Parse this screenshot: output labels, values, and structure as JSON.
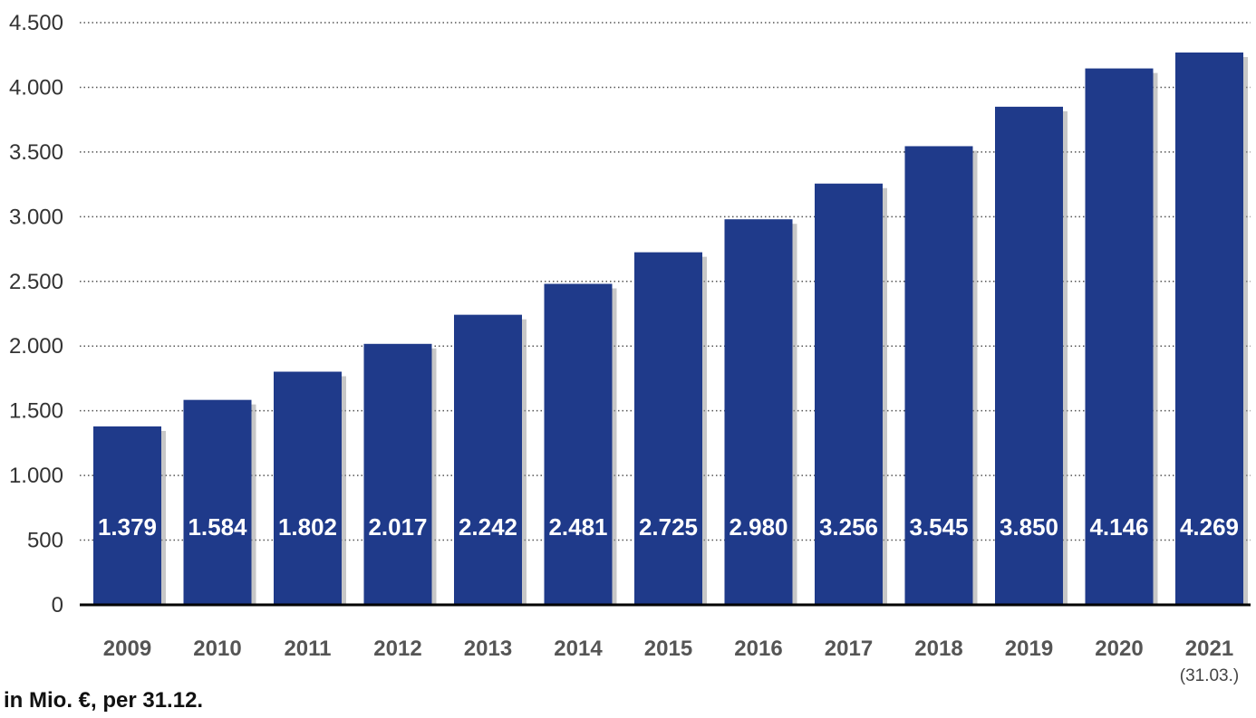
{
  "chart_data": {
    "type": "bar",
    "categories": [
      "2009",
      "2010",
      "2011",
      "2012",
      "2013",
      "2014",
      "2015",
      "2016",
      "2017",
      "2018",
      "2019",
      "2020",
      "2021"
    ],
    "category_sublabels": [
      "",
      "",
      "",
      "",
      "",
      "",
      "",
      "",
      "",
      "",
      "",
      "",
      "(31.03.)"
    ],
    "values": [
      1379,
      1584,
      1802,
      2017,
      2242,
      2481,
      2725,
      2980,
      3256,
      3545,
      3850,
      4146,
      4269
    ],
    "data_labels": [
      "1.379",
      "1.584",
      "1.802",
      "2.017",
      "2.242",
      "2.481",
      "2.725",
      "2.980",
      "3.256",
      "3.545",
      "3.850",
      "4.146",
      "4.269"
    ],
    "yticks": [
      0,
      500,
      1000,
      1500,
      2000,
      2500,
      3000,
      3500,
      4000,
      4500
    ],
    "ytick_labels": [
      "0",
      "500",
      "1.000",
      "1.500",
      "2.000",
      "2.500",
      "3.000",
      "3.500",
      "4.000",
      "4.500"
    ],
    "ylim": [
      0,
      4500
    ],
    "grid": "dotted horizontal",
    "bar_color": "#1f3a8a",
    "shadow_color": "#999999"
  },
  "footnote": "in Mio. €, per 31.12."
}
